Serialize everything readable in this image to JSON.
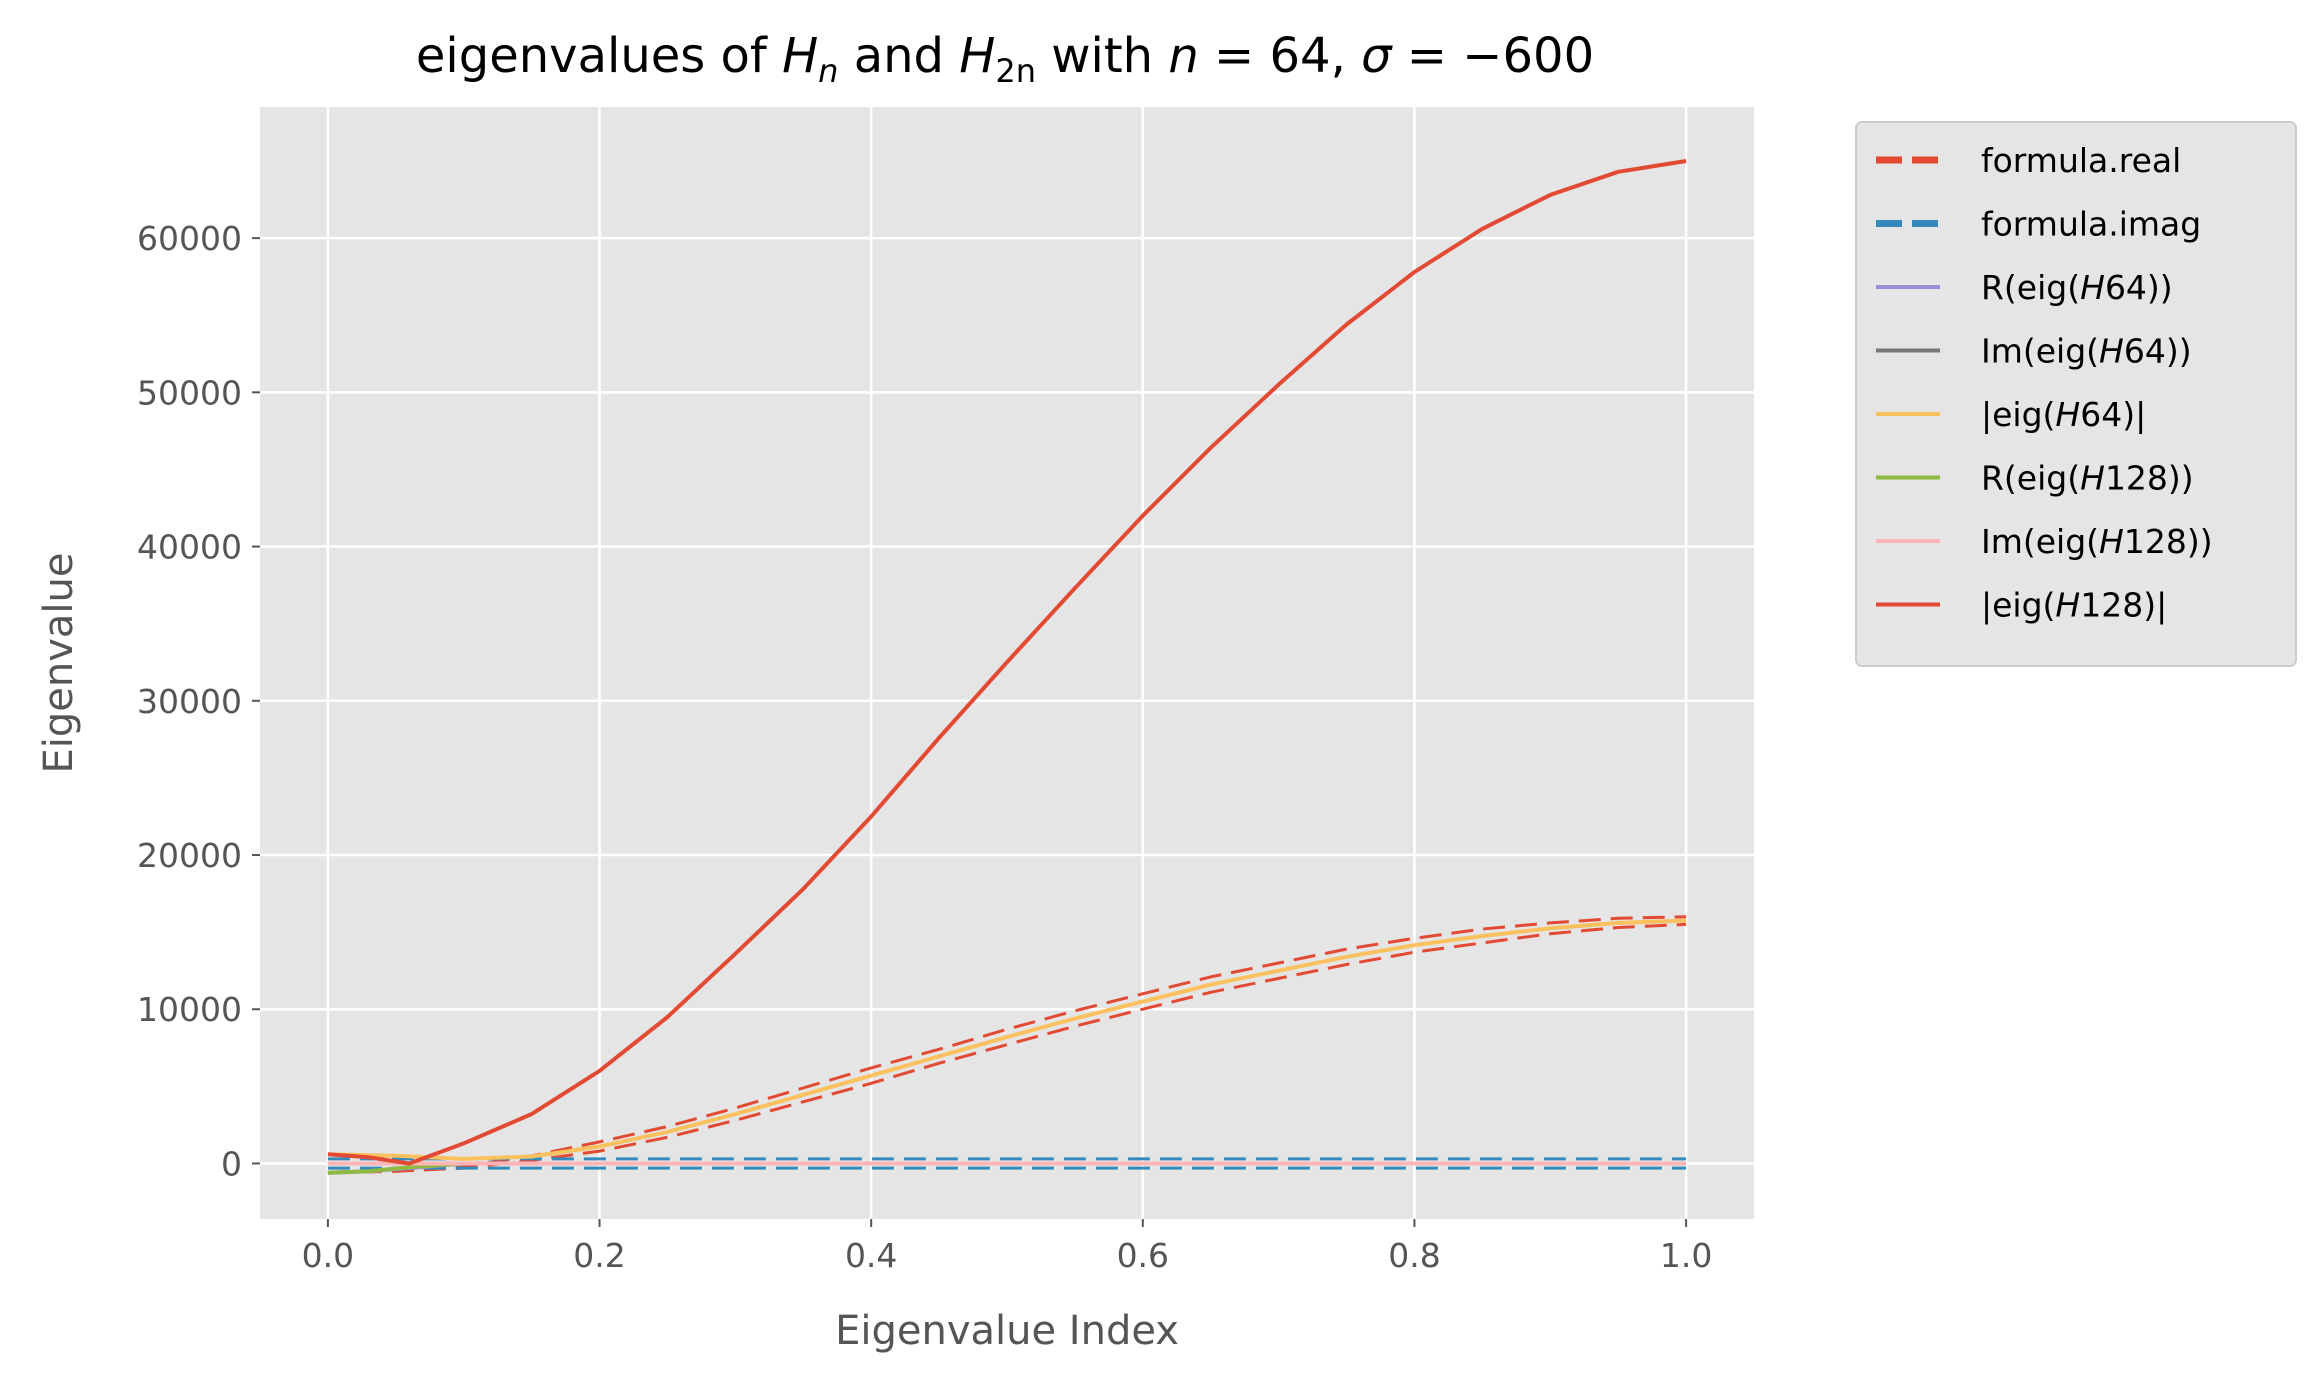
{
  "chart_data": {
    "type": "line",
    "title": "eigenvalues of H_n and H_2n with n = 64, σ = −600",
    "title_parts": {
      "t1": "eigenvalues of ",
      "h": "H",
      "n": "n",
      "and": " and ",
      "h2": "H",
      "two_n": "2n",
      "with": " with ",
      "nvar": "n",
      "eq64": " = 64, ",
      "sigma": "σ",
      "eqsig": " = −600"
    },
    "xlabel": "Eigenvalue Index",
    "ylabel": "Eigenvalue",
    "xlim": [
      -0.05,
      1.05
    ],
    "ylim": [
      -3600,
      68500
    ],
    "xticks": [
      0.0,
      0.2,
      0.4,
      0.6,
      0.8,
      1.0
    ],
    "xtick_labels": [
      "0.0",
      "0.2",
      "0.4",
      "0.6",
      "0.8",
      "1.0"
    ],
    "yticks": [
      0,
      10000,
      20000,
      30000,
      40000,
      50000,
      60000
    ],
    "ytick_labels": [
      "0",
      "10000",
      "20000",
      "30000",
      "40000",
      "50000",
      "60000"
    ],
    "grid": true,
    "legend_position": "outside-right",
    "background": "#e5e5e5",
    "series": [
      {
        "name": "formula.real",
        "color": "#e24a33",
        "style": "dashed",
        "x": [
          0.0,
          0.05,
          0.1,
          0.15,
          0.2,
          0.25,
          0.3,
          0.35,
          0.4,
          0.45,
          0.5,
          0.55,
          0.6,
          0.65,
          0.7,
          0.75,
          0.8,
          0.85,
          0.9,
          0.95,
          1.0
        ],
        "y": [
          -600,
          -500,
          -200,
          500,
          1400,
          2400,
          3600,
          4900,
          6200,
          7400,
          8700,
          9900,
          11000,
          12100,
          13000,
          13900,
          14600,
          15200,
          15600,
          15900,
          16000
        ]
      },
      {
        "name": "formula.real",
        "color": "#e24a33",
        "style": "dashed",
        "legend": false,
        "x": [
          0.0,
          0.05,
          0.1,
          0.15,
          0.2,
          0.25,
          0.3,
          0.35,
          0.4,
          0.45,
          0.5,
          0.55,
          0.6,
          0.65,
          0.7,
          0.75,
          0.8,
          0.85,
          0.9,
          0.95,
          1.0
        ],
        "y": [
          -600,
          -500,
          -300,
          200,
          800,
          1700,
          2800,
          4000,
          5200,
          6500,
          7700,
          8900,
          10000,
          11100,
          12000,
          12900,
          13700,
          14300,
          14900,
          15300,
          15500
        ]
      },
      {
        "name": "formula.imag",
        "color": "#348abd",
        "style": "dashed",
        "x": [
          0.0,
          1.0
        ],
        "y": [
          -300,
          -300
        ]
      },
      {
        "name": "formula.imag",
        "color": "#348abd",
        "style": "dashed",
        "legend": false,
        "x": [
          0.0,
          1.0
        ],
        "y": [
          300,
          300
        ]
      },
      {
        "name": "R(eig(H64))",
        "color": "#988ed5",
        "style": "solid",
        "x": [
          0.0,
          0.03,
          0.06,
          0.1
        ],
        "y": [
          -600,
          -500,
          -300,
          0
        ]
      },
      {
        "name": "Im(eig(H64))",
        "color": "#777777",
        "style": "solid",
        "x": [
          0.0,
          0.1
        ],
        "y": [
          0,
          0
        ]
      },
      {
        "name": "|eig(H64)|",
        "color": "#fbc15e",
        "style": "solid",
        "x": [
          0.0,
          0.05,
          0.1,
          0.15,
          0.2,
          0.25,
          0.3,
          0.35,
          0.4,
          0.45,
          0.5,
          0.55,
          0.6,
          0.65,
          0.7,
          0.75,
          0.8,
          0.85,
          0.9,
          0.95,
          1.0
        ],
        "y": [
          600,
          500,
          300,
          450,
          1100,
          2050,
          3200,
          4450,
          5700,
          6950,
          8200,
          9400,
          10500,
          11600,
          12500,
          13400,
          14150,
          14750,
          15250,
          15600,
          15750
        ]
      },
      {
        "name": "R(eig(H128))",
        "color": "#8eba42",
        "style": "solid",
        "x": [
          0.0,
          0.03,
          0.06,
          0.1
        ],
        "y": [
          -600,
          -500,
          -250,
          0
        ]
      },
      {
        "name": "Im(eig(H128))",
        "color": "#ffb5b8",
        "style": "solid",
        "x": [
          0.0,
          1.0
        ],
        "y": [
          0,
          0
        ]
      },
      {
        "name": "|eig(H128)|",
        "color": "#e24a33",
        "style": "solid",
        "x": [
          0.0,
          0.03,
          0.06,
          0.1,
          0.15,
          0.2,
          0.25,
          0.3,
          0.35,
          0.4,
          0.45,
          0.5,
          0.55,
          0.6,
          0.65,
          0.7,
          0.75,
          0.8,
          0.85,
          0.9,
          0.95,
          1.0
        ],
        "y": [
          600,
          400,
          0,
          1300,
          3200,
          6000,
          9500,
          13600,
          17800,
          22500,
          27600,
          32500,
          37300,
          42000,
          46400,
          50500,
          54400,
          57800,
          60600,
          62800,
          64300,
          65000
        ]
      }
    ],
    "legend": [
      {
        "label_text": "formula.real",
        "color": "#e24a33",
        "style": "dashed-thick"
      },
      {
        "label_text": "formula.imag",
        "color": "#348abd",
        "style": "dashed-thick"
      },
      {
        "pre": "R(eig(",
        "it": "H",
        "post": "64))",
        "color": "#988ed5",
        "style": "solid"
      },
      {
        "pre": "Im(eig(",
        "it": "H",
        "post": "64))",
        "color": "#777777",
        "style": "solid"
      },
      {
        "pre": "|eig(",
        "it": "H",
        "post": "64)|",
        "color": "#fbc15e",
        "style": "solid"
      },
      {
        "pre": "R(eig(",
        "it": "H",
        "post": "128))",
        "color": "#8eba42",
        "style": "solid"
      },
      {
        "pre": "Im(eig(",
        "it": "H",
        "post": "128))",
        "color": "#ffb5b8",
        "style": "solid"
      },
      {
        "pre": "|eig(",
        "it": "H",
        "post": "128)|",
        "color": "#e24a33",
        "style": "solid"
      }
    ]
  }
}
